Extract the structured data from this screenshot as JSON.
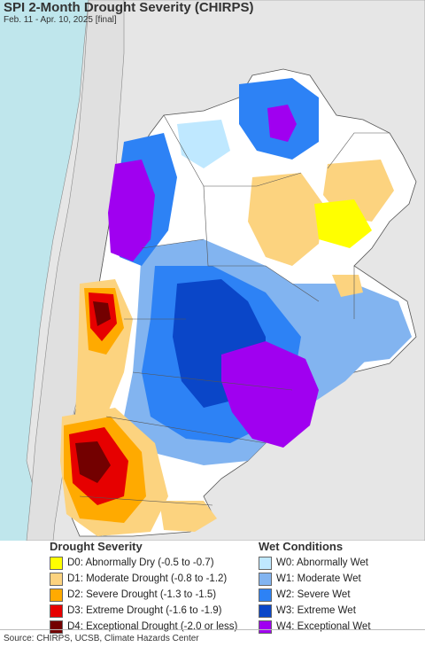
{
  "title": "SPI 2-Month Drought Severity (CHIRPS)",
  "subtitle": "Feb. 11 - Apr. 10, 2025 [final]",
  "legend": {
    "drought_heading": "Drought Severity",
    "wet_heading": "Wet Conditions",
    "drought": [
      {
        "label": "D0: Abnormally Dry (-0.5 to -0.7)",
        "color": "#ffff00"
      },
      {
        "label": "D1: Moderate Drought (-0.8 to -1.2)",
        "color": "#fcd37f"
      },
      {
        "label": "D2: Severe Drought (-1.3 to -1.5)",
        "color": "#ffaa00"
      },
      {
        "label": "D3: Extreme Drought (-1.6 to -1.9)",
        "color": "#e60000"
      },
      {
        "label": "D4: Exceptional Drought (-2.0 or less)",
        "color": "#730000"
      }
    ],
    "wet": [
      {
        "label": "W0: Abnormally Wet",
        "color": "#bfe8ff"
      },
      {
        "label": "W1: Moderate Wet",
        "color": "#82b4f0"
      },
      {
        "label": "W2: Severe Wet",
        "color": "#2d82f5"
      },
      {
        "label": "W3: Extreme Wet",
        "color": "#0a46c8"
      },
      {
        "label": "W4: Exceptional Wet",
        "color": "#a000f0"
      }
    ]
  },
  "source": "Source: CHIRPS, UCSB, Climate Hazards Center",
  "colors": {
    "ocean": "#bfe6ec",
    "outside_land": "#e6e6e6",
    "land_neutral": "#ffffff"
  }
}
